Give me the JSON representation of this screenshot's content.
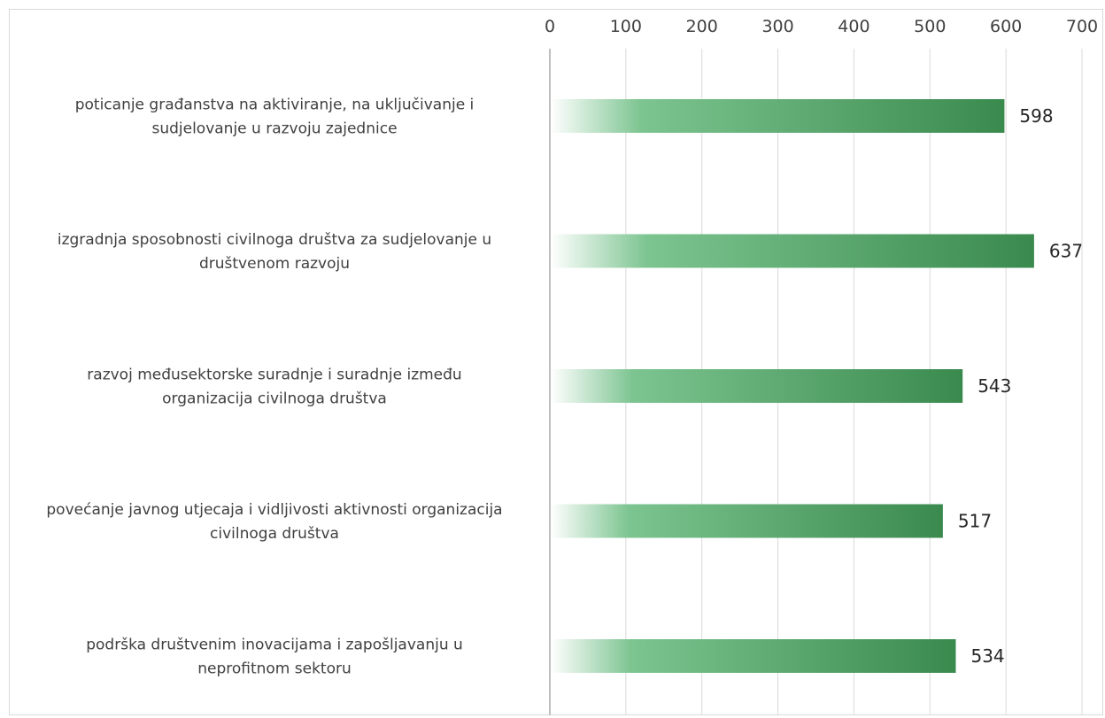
{
  "chart_data": {
    "type": "bar",
    "orientation": "horizontal",
    "categories": [
      [
        "poticanje građanstva na aktiviranje, na uključivanje i",
        "sudjelovanje u razvoju zajednice"
      ],
      [
        "izgradnja sposobnosti civilnoga društva za sudjelovanje u",
        "društvenom razvoju"
      ],
      [
        "razvoj međusektorske suradnje i suradnje između",
        "organizacija civilnoga društva"
      ],
      [
        "povećanje javnog utjecaja i vidljivosti aktivnosti organizacija",
        "civilnoga društva"
      ],
      [
        "podrška društvenim inovacijama i zapošljavanju u",
        "neprofitnom sektoru"
      ]
    ],
    "values": [
      598,
      637,
      543,
      517,
      534
    ],
    "value_labels": [
      "598",
      "637",
      "543",
      "517",
      "534"
    ],
    "xlim": [
      0,
      700
    ],
    "xticks": [
      "0",
      "100",
      "200",
      "300",
      "400",
      "500",
      "600",
      "700"
    ],
    "axis_position": "top",
    "grid": true,
    "bar_colors": {
      "start": "#ffffff",
      "mid": "#7cc490",
      "end": "#3a8a4e"
    },
    "colors": {
      "grid": "#d9d9d9",
      "axis": "#bfbfbf",
      "text": "#404040"
    }
  }
}
